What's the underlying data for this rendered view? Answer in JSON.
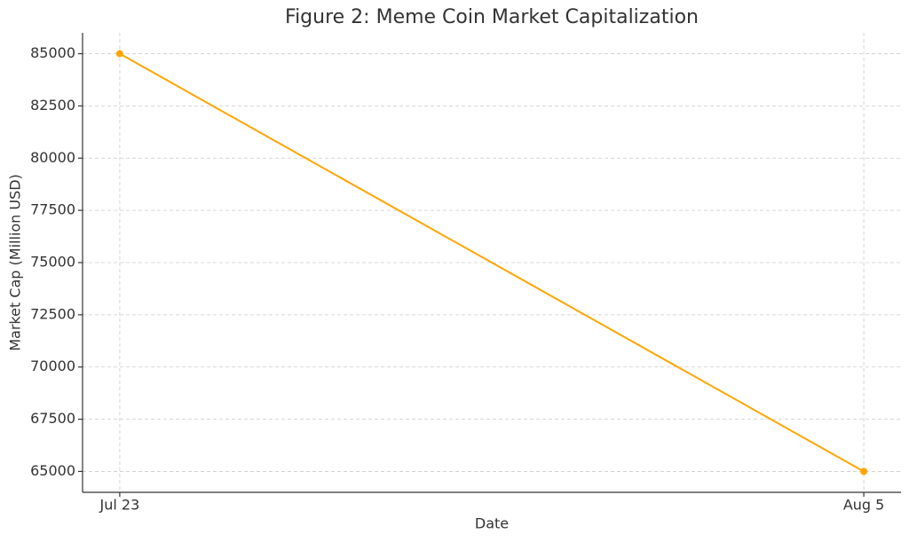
{
  "chart_data": {
    "type": "line",
    "title": "Figure 2: Meme Coin Market Capitalization",
    "x_label": "Date",
    "y_label": "Market Cap (Million USD)",
    "categories": [
      "Jul 23",
      "Aug 5"
    ],
    "series": [
      {
        "name": "Market Cap",
        "color": "#ffa500",
        "values": [
          85000,
          65000
        ]
      }
    ],
    "ylim": [
      64000,
      86000
    ],
    "yticks": [
      65000,
      67500,
      70000,
      72500,
      75000,
      77500,
      80000,
      82500,
      85000
    ],
    "grid": true
  }
}
